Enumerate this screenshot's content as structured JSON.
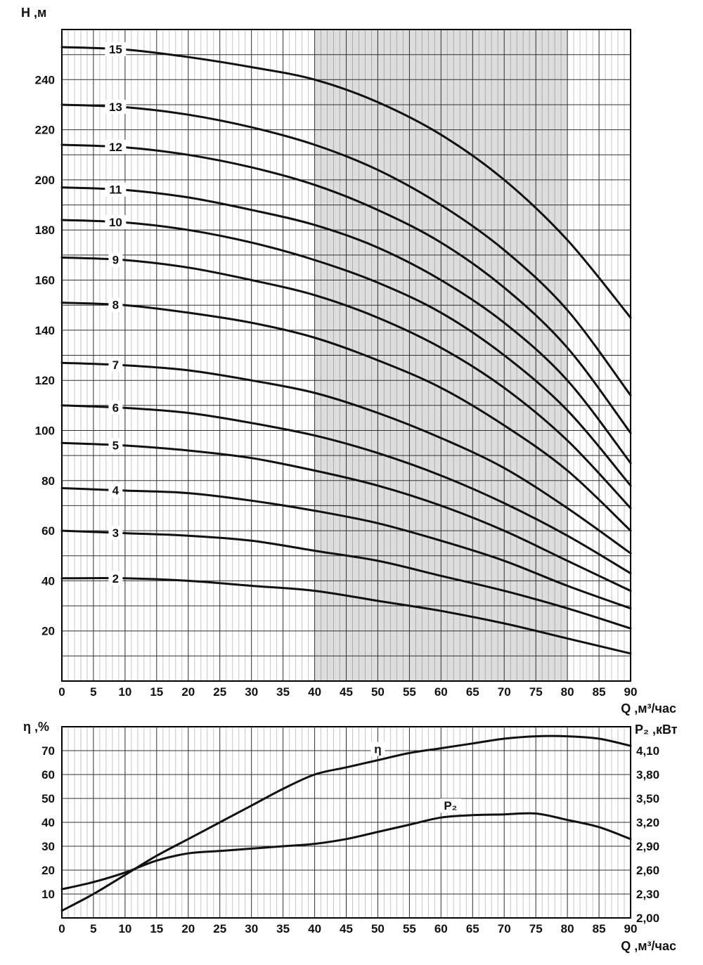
{
  "colors": {
    "background": "#ffffff",
    "curve": "#111111",
    "grid_major": "#2f2f2f",
    "grid_minor": "#c6c6c6",
    "frame": "#000000",
    "shaded_region": "rgba(0,0,0,0.135)"
  },
  "chart_data": [
    {
      "id": "head_chart",
      "type": "line",
      "xlabel": "Q ,м³/час",
      "ylabel": "H ,м",
      "xlim": [
        0,
        90
      ],
      "ylim": [
        0,
        260
      ],
      "x_ticks": [
        0,
        5,
        10,
        15,
        20,
        25,
        30,
        35,
        40,
        45,
        50,
        55,
        60,
        65,
        70,
        75,
        80,
        85,
        90
      ],
      "y_ticks": [
        240,
        220,
        200,
        180,
        160,
        140,
        120,
        100,
        80,
        60,
        40,
        20
      ],
      "grid": {
        "x_minor_step": 1,
        "x_major_step": 5,
        "y_step": 10
      },
      "shaded_region": {
        "from": 40,
        "to": 80
      },
      "x": [
        0,
        10,
        20,
        30,
        40,
        50,
        60,
        70,
        80,
        90
      ],
      "series": [
        {
          "name": "15",
          "values": [
            253,
            252,
            249,
            245,
            240,
            231,
            218,
            200,
            176,
            145
          ]
        },
        {
          "name": "13",
          "values": [
            230,
            229,
            226,
            221,
            214,
            204,
            190,
            172,
            148,
            114
          ]
        },
        {
          "name": "12",
          "values": [
            214,
            213,
            210,
            205,
            198,
            188,
            175,
            157,
            133,
            99
          ]
        },
        {
          "name": "11",
          "values": [
            197,
            196,
            193,
            188,
            182,
            173,
            160,
            143,
            120,
            87
          ]
        },
        {
          "name": "10",
          "values": [
            184,
            183,
            180,
            175,
            168,
            159,
            147,
            130,
            108,
            78
          ]
        },
        {
          "name": "9",
          "values": [
            169,
            168,
            165,
            160,
            154,
            145,
            133,
            117,
            96,
            69
          ]
        },
        {
          "name": "8",
          "values": [
            151,
            150,
            147,
            143,
            137,
            128,
            117,
            102,
            84,
            60
          ]
        },
        {
          "name": "7",
          "values": [
            127,
            126,
            124,
            120,
            115,
            107,
            97,
            85,
            69,
            51
          ]
        },
        {
          "name": "6",
          "values": [
            110,
            109,
            107,
            103,
            98,
            91,
            82,
            71,
            58,
            43
          ]
        },
        {
          "name": "5",
          "values": [
            95,
            94,
            92,
            89,
            84,
            78,
            70,
            60,
            48,
            36
          ]
        },
        {
          "name": "4",
          "values": [
            77,
            76,
            75,
            72,
            68,
            63,
            56,
            48,
            38,
            29
          ]
        },
        {
          "name": "3",
          "values": [
            60,
            59,
            58,
            56,
            52,
            48,
            42,
            36,
            29,
            21
          ]
        },
        {
          "name": "2",
          "values": [
            41,
            41,
            40,
            38,
            36,
            32,
            28,
            23,
            17,
            11
          ]
        }
      ]
    },
    {
      "id": "eta_power_chart",
      "type": "line",
      "xlabel": "Q ,м³/час",
      "ylabel_left": "η ,%",
      "ylabel_right": "P₂ ,кВт",
      "xlim": [
        0,
        90
      ],
      "ylim_left": [
        0,
        80
      ],
      "ylim_right": [
        2.0,
        4.4
      ],
      "x_ticks": [
        0,
        5,
        10,
        15,
        20,
        25,
        30,
        35,
        40,
        45,
        50,
        55,
        60,
        65,
        70,
        75,
        80,
        85,
        90
      ],
      "left_ticks": [
        70,
        60,
        50,
        40,
        30,
        20,
        10
      ],
      "right_ticks": [
        {
          "label": "4,10",
          "value": 4.1
        },
        {
          "label": "3,80",
          "value": 3.8
        },
        {
          "label": "3,50",
          "value": 3.5
        },
        {
          "label": "3,20",
          "value": 3.2
        },
        {
          "label": "2,90",
          "value": 2.9
        },
        {
          "label": "2,60",
          "value": 2.6
        },
        {
          "label": "2,30",
          "value": 2.3
        },
        {
          "label": "2,00",
          "value": 2.0
        }
      ],
      "grid": {
        "x_minor_step": 1,
        "x_major_step": 5,
        "y_step": 10
      },
      "x": [
        0,
        5,
        10,
        15,
        20,
        25,
        30,
        35,
        40,
        45,
        50,
        55,
        60,
        65,
        70,
        75,
        80,
        85,
        90
      ],
      "series": [
        {
          "name": "η",
          "axis": "left",
          "values": [
            3,
            10,
            18,
            26,
            33,
            40,
            47,
            54,
            60,
            63,
            66,
            69,
            71,
            73,
            75,
            76,
            76,
            75,
            72
          ]
        },
        {
          "name": "P₂",
          "axis": "right",
          "values": [
            2.36,
            2.45,
            2.57,
            2.72,
            2.81,
            2.84,
            2.87,
            2.9,
            2.93,
            2.99,
            3.08,
            3.17,
            3.26,
            3.29,
            3.3,
            3.31,
            3.23,
            3.14,
            2.99
          ]
        }
      ]
    }
  ]
}
